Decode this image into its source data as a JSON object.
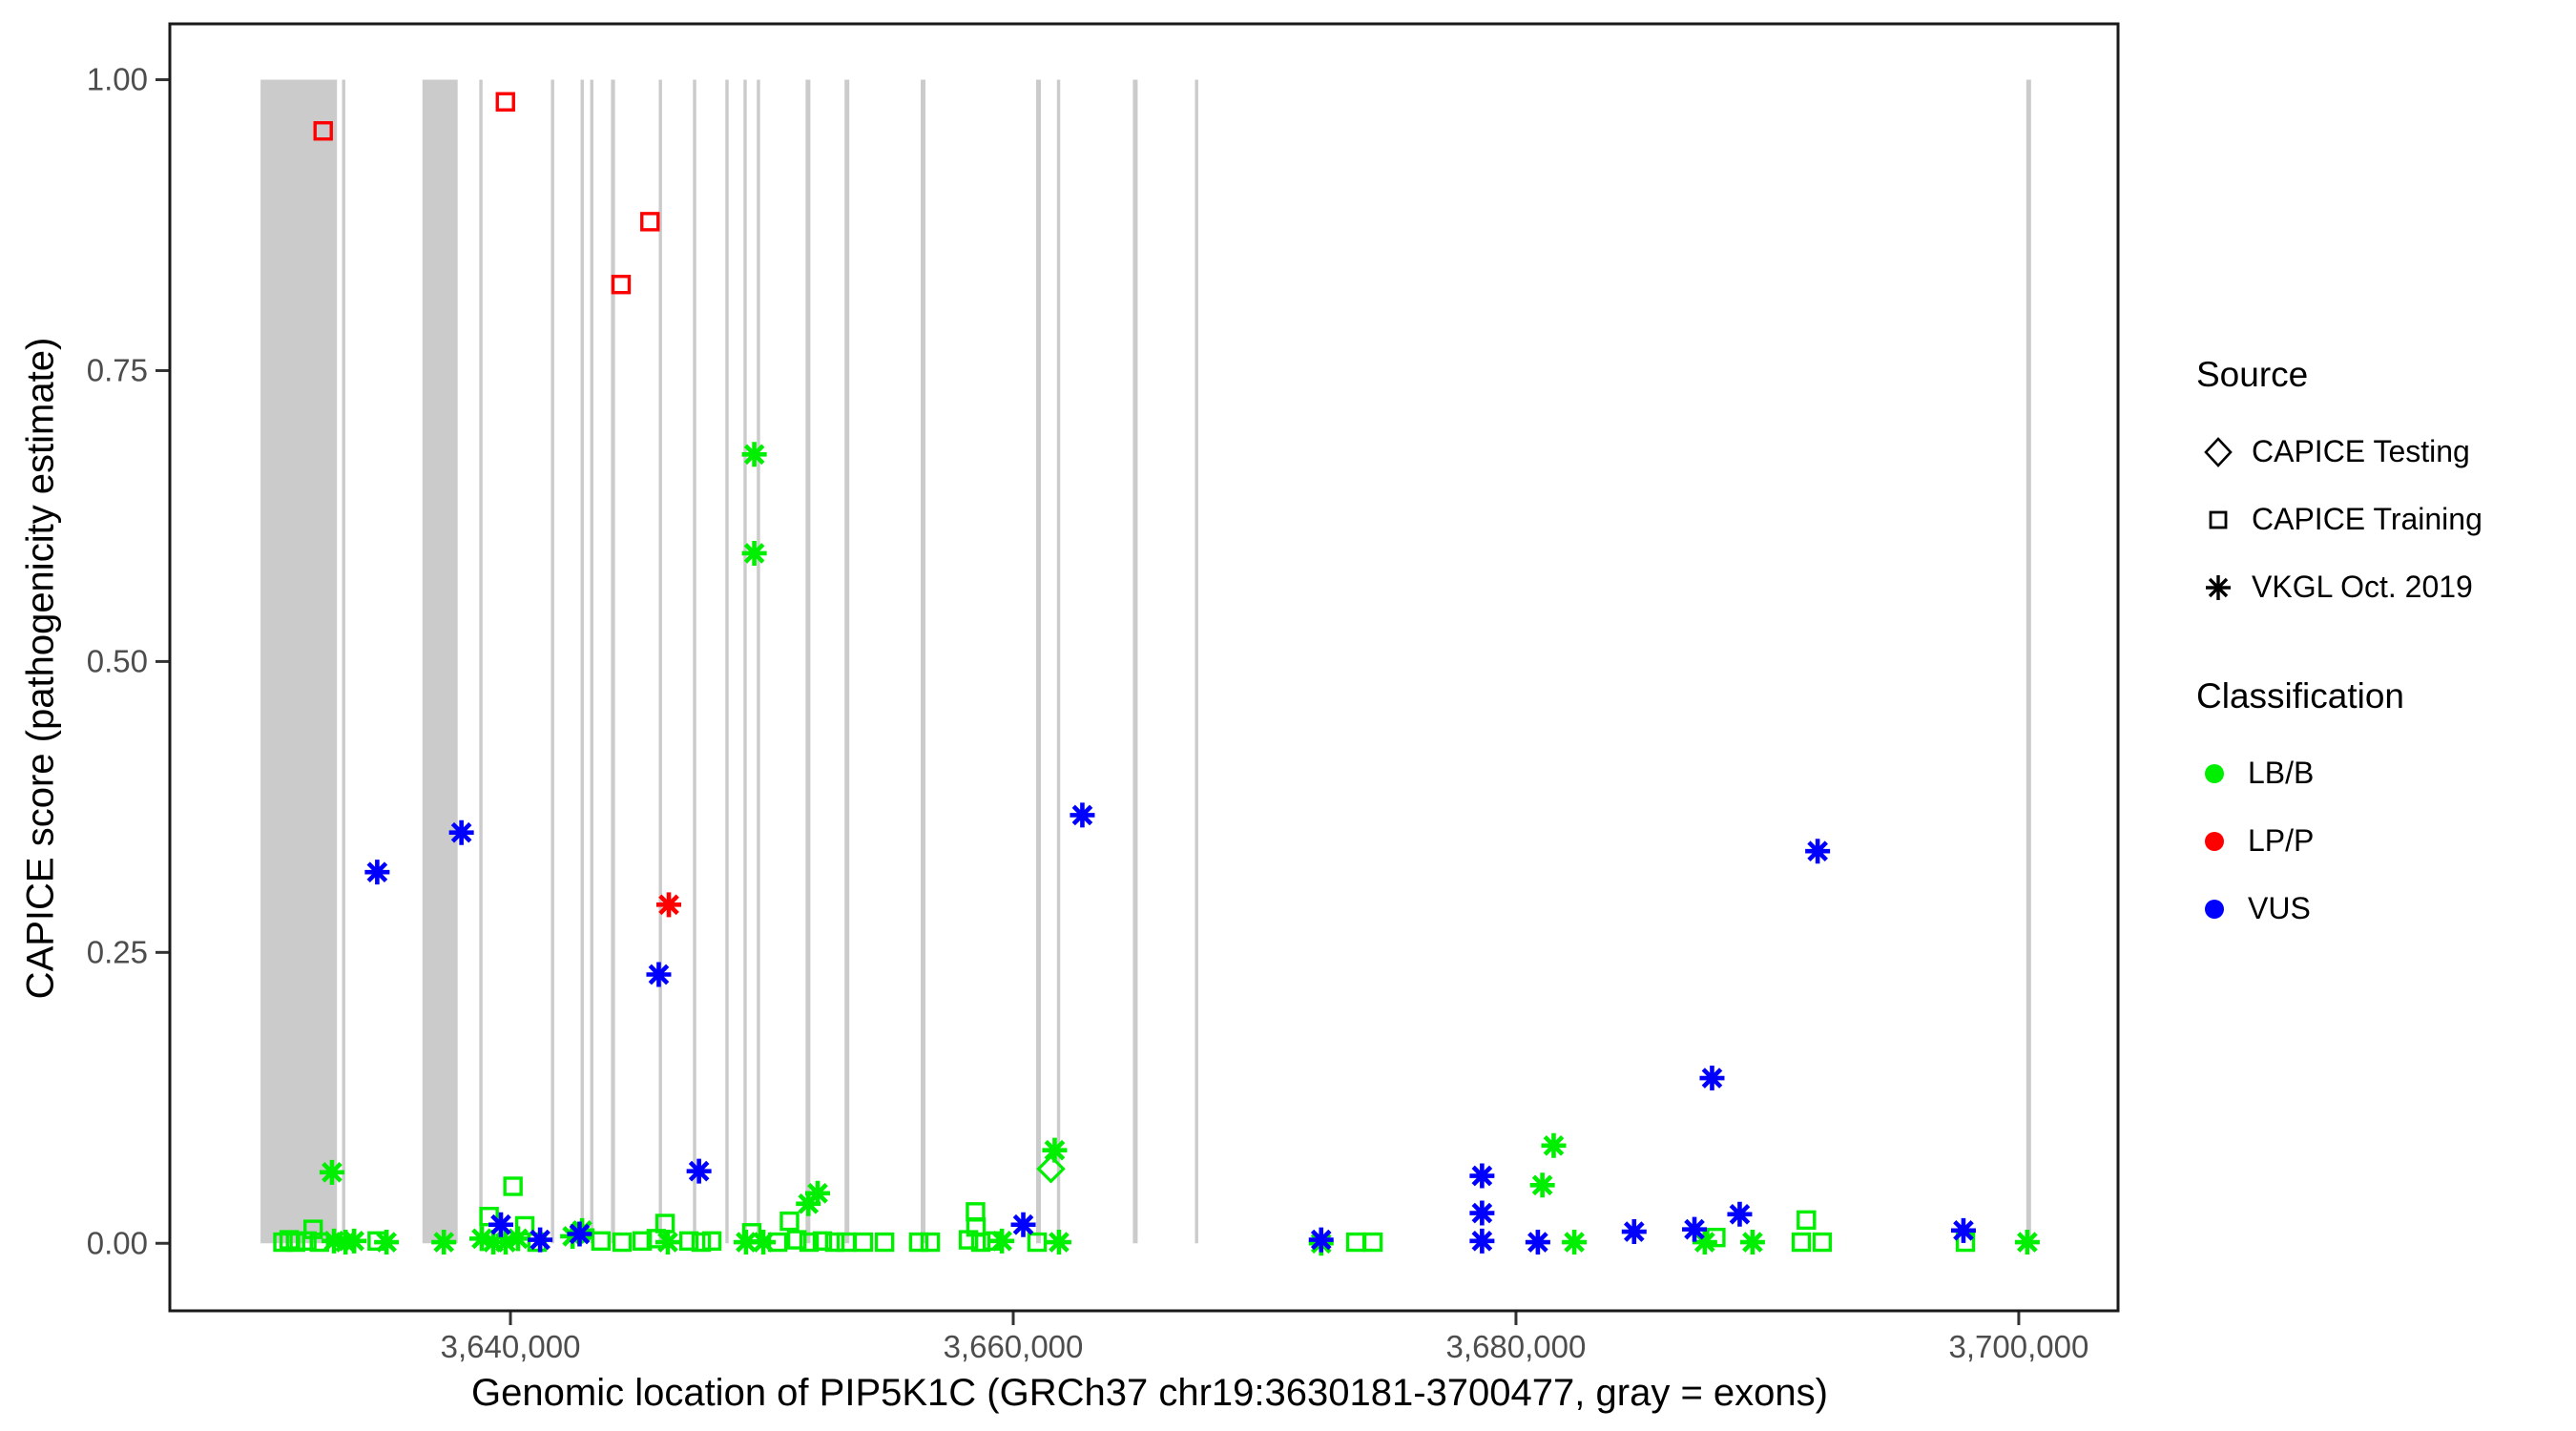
{
  "figure": {
    "x_axis_title": "Genomic location of PIP5K1C (GRCh37 chr19:3630181-3700477, gray = exons)",
    "y_axis_title": "CAPICE score (pathogenicity estimate)"
  },
  "legend": {
    "source": {
      "title": "Source",
      "items": [
        {
          "marker": "diamond",
          "label": "CAPICE Testing"
        },
        {
          "marker": "square",
          "label": "CAPICE Training"
        },
        {
          "marker": "asterisk",
          "label": "VKGL Oct. 2019"
        }
      ]
    },
    "classification": {
      "title": "Classification",
      "items": [
        {
          "color": "#00EE00",
          "label": "LB/B"
        },
        {
          "color": "#FF0000",
          "label": "LP/P"
        },
        {
          "color": "#0000FF",
          "label": "VUS"
        }
      ]
    }
  },
  "colors": {
    "background": "#FFFFFF",
    "exon_band": "#CBCBCB",
    "panel_border": "#1A1A1A",
    "tick_label": "#4D4D4D",
    "lbb_green": "#00EE00",
    "lpp_red": "#FF0000",
    "vus_blue": "#0000FF"
  },
  "chart_data": {
    "type": "scatter",
    "title": "",
    "xlabel": "Genomic location of PIP5K1C (GRCh37 chr19:3630181-3700477, gray = exons)",
    "ylabel": "CAPICE score (pathogenicity estimate)",
    "grid": false,
    "legend_position": "right",
    "x_range": [
      3626450,
      3703950
    ],
    "y_range": [
      -0.058,
      1.048
    ],
    "x_ticks": [
      {
        "v": 3640000,
        "label": "3,640,000"
      },
      {
        "v": 3660000,
        "label": "3,660,000"
      },
      {
        "v": 3680000,
        "label": "3,680,000"
      },
      {
        "v": 3700000,
        "label": "3,700,000"
      }
    ],
    "y_ticks": [
      {
        "v": 0.0,
        "label": "0.00"
      },
      {
        "v": 0.25,
        "label": "0.25"
      },
      {
        "v": 0.5,
        "label": "0.50"
      },
      {
        "v": 0.75,
        "label": "0.75"
      },
      {
        "v": 1.0,
        "label": "1.00"
      }
    ],
    "exons_note": "gray vertical bands span score 0 to 1 and mark exon intervals",
    "exons": [
      [
        3630060,
        3633100
      ],
      [
        3633300,
        3633430
      ],
      [
        3636500,
        3637900
      ],
      [
        3638760,
        3638890
      ],
      [
        3641610,
        3641740
      ],
      [
        3642790,
        3642920
      ],
      [
        3643170,
        3643300
      ],
      [
        3644000,
        3644160
      ],
      [
        3645900,
        3646030
      ],
      [
        3647260,
        3647390
      ],
      [
        3648550,
        3648680
      ],
      [
        3649270,
        3649400
      ],
      [
        3649800,
        3649930
      ],
      [
        3651740,
        3651930
      ],
      [
        3653290,
        3653480
      ],
      [
        3656320,
        3656510
      ],
      [
        3660910,
        3661100
      ],
      [
        3661740,
        3661870
      ],
      [
        3664760,
        3664950
      ],
      [
        3667230,
        3667360
      ],
      [
        3700300,
        3700490
      ]
    ],
    "marker_by_source": {
      "CAPICE Testing": "diamond",
      "CAPICE Training": "square",
      "VKGL Oct. 2019": "asterisk"
    },
    "color_by_classification": {
      "LB/B": "#00EE00",
      "LP/P": "#FF0000",
      "VUS": "#0000FF"
    },
    "points_columns": [
      "position",
      "score",
      "source",
      "classification"
    ],
    "points": [
      [
        3630950,
        0.001,
        "CAPICE Training",
        "LB/B"
      ],
      [
        3631200,
        0.003,
        "CAPICE Training",
        "LB/B"
      ],
      [
        3631450,
        0.001,
        "CAPICE Training",
        "LB/B"
      ],
      [
        3631900,
        0.002,
        "CAPICE Training",
        "LB/B"
      ],
      [
        3632150,
        0.012,
        "CAPICE Training",
        "LB/B"
      ],
      [
        3632400,
        0.001,
        "CAPICE Training",
        "LB/B"
      ],
      [
        3632980,
        0.002,
        "VKGL Oct. 2019",
        "LB/B"
      ],
      [
        3633440,
        0.001,
        "VKGL Oct. 2019",
        "LB/B"
      ],
      [
        3633780,
        0.002,
        "VKGL Oct. 2019",
        "LB/B"
      ],
      [
        3634700,
        0.002,
        "CAPICE Training",
        "LB/B"
      ],
      [
        3635070,
        0.001,
        "VKGL Oct. 2019",
        "LB/B"
      ],
      [
        3637350,
        0.001,
        "VKGL Oct. 2019",
        "LB/B"
      ],
      [
        3638860,
        0.004,
        "VKGL Oct. 2019",
        "LB/B"
      ],
      [
        3639150,
        0.023,
        "CAPICE Training",
        "LB/B"
      ],
      [
        3639320,
        0.001,
        "VKGL Oct. 2019",
        "LB/B"
      ],
      [
        3639810,
        0.001,
        "VKGL Oct. 2019",
        "LB/B"
      ],
      [
        3640100,
        0.049,
        "CAPICE Training",
        "LB/B"
      ],
      [
        3640300,
        0.004,
        "VKGL Oct. 2019",
        "LB/B"
      ],
      [
        3640570,
        0.015,
        "CAPICE Training",
        "LB/B"
      ],
      [
        3641060,
        0.001,
        "CAPICE Training",
        "LB/B"
      ],
      [
        3642470,
        0.006,
        "VKGL Oct. 2019",
        "LB/B"
      ],
      [
        3642850,
        0.011,
        "VKGL Oct. 2019",
        "LB/B"
      ],
      [
        3643600,
        0.002,
        "CAPICE Training",
        "LB/B"
      ],
      [
        3644440,
        0.001,
        "CAPICE Training",
        "LB/B"
      ],
      [
        3645240,
        0.002,
        "CAPICE Training",
        "LB/B"
      ],
      [
        3645800,
        0.004,
        "CAPICE Training",
        "LB/B"
      ],
      [
        3646150,
        0.017,
        "CAPICE Training",
        "LB/B"
      ],
      [
        3646260,
        0.001,
        "VKGL Oct. 2019",
        "LB/B"
      ],
      [
        3647100,
        0.002,
        "CAPICE Training",
        "LB/B"
      ],
      [
        3647590,
        0.001,
        "CAPICE Training",
        "LB/B"
      ],
      [
        3648010,
        0.002,
        "CAPICE Training",
        "LB/B"
      ],
      [
        3649370,
        0.001,
        "VKGL Oct. 2019",
        "LB/B"
      ],
      [
        3649600,
        0.009,
        "CAPICE Training",
        "LB/B"
      ],
      [
        3650060,
        0.001,
        "VKGL Oct. 2019",
        "LB/B"
      ],
      [
        3650630,
        0.001,
        "CAPICE Training",
        "LB/B"
      ],
      [
        3651100,
        0.019,
        "CAPICE Training",
        "LB/B"
      ],
      [
        3651390,
        0.003,
        "CAPICE Training",
        "LB/B"
      ],
      [
        3651850,
        0.034,
        "VKGL Oct. 2019",
        "LB/B"
      ],
      [
        3651880,
        0.001,
        "CAPICE Training",
        "LB/B"
      ],
      [
        3652220,
        0.043,
        "VKGL Oct. 2019",
        "LB/B"
      ],
      [
        3652410,
        0.002,
        "CAPICE Training",
        "LB/B"
      ],
      [
        3652900,
        0.001,
        "CAPICE Training",
        "LB/B"
      ],
      [
        3653360,
        0.001,
        "CAPICE Training",
        "LB/B"
      ],
      [
        3654040,
        0.001,
        "CAPICE Training",
        "LB/B"
      ],
      [
        3654880,
        0.001,
        "CAPICE Training",
        "LB/B"
      ],
      [
        3656240,
        0.001,
        "CAPICE Training",
        "LB/B"
      ],
      [
        3656700,
        0.001,
        "CAPICE Training",
        "LB/B"
      ],
      [
        3658220,
        0.003,
        "CAPICE Training",
        "LB/B"
      ],
      [
        3658500,
        0.027,
        "CAPICE Training",
        "LB/B"
      ],
      [
        3658520,
        0.014,
        "CAPICE Training",
        "LB/B"
      ],
      [
        3658710,
        0.001,
        "CAPICE Training",
        "LB/B"
      ],
      [
        3659170,
        0.002,
        "CAPICE Training",
        "LB/B"
      ],
      [
        3659550,
        0.002,
        "VKGL Oct. 2019",
        "LB/B"
      ],
      [
        3660950,
        0.001,
        "CAPICE Training",
        "LB/B"
      ],
      [
        3661500,
        0.064,
        "CAPICE Testing",
        "LB/B"
      ],
      [
        3661650,
        0.08,
        "VKGL Oct. 2019",
        "LB/B"
      ],
      [
        3661820,
        0.001,
        "VKGL Oct. 2019",
        "LB/B"
      ],
      [
        3672250,
        0.0,
        "VKGL Oct. 2019",
        "LB/B"
      ],
      [
        3673630,
        0.001,
        "CAPICE Training",
        "LB/B"
      ],
      [
        3674310,
        0.001,
        "CAPICE Training",
        "LB/B"
      ],
      [
        3681050,
        0.05,
        "VKGL Oct. 2019",
        "LB/B"
      ],
      [
        3681500,
        0.084,
        "VKGL Oct. 2019",
        "LB/B"
      ],
      [
        3682320,
        0.001,
        "VKGL Oct. 2019",
        "LB/B"
      ],
      [
        3687510,
        0.001,
        "VKGL Oct. 2019",
        "LB/B"
      ],
      [
        3687950,
        0.005,
        "CAPICE Training",
        "LB/B"
      ],
      [
        3689410,
        0.001,
        "VKGL Oct. 2019",
        "LB/B"
      ],
      [
        3691350,
        0.001,
        "CAPICE Training",
        "LB/B"
      ],
      [
        3691550,
        0.02,
        "CAPICE Training",
        "LB/B"
      ],
      [
        3692180,
        0.001,
        "CAPICE Training",
        "LB/B"
      ],
      [
        3697880,
        0.001,
        "CAPICE Training",
        "LB/B"
      ],
      [
        3700340,
        0.001,
        "VKGL Oct. 2019",
        "LB/B"
      ],
      [
        3632900,
        0.061,
        "VKGL Oct. 2019",
        "LB/B"
      ],
      [
        3649700,
        0.678,
        "VKGL Oct. 2019",
        "LB/B"
      ],
      [
        3649700,
        0.593,
        "VKGL Oct. 2019",
        "LB/B"
      ],
      [
        3634700,
        0.319,
        "VKGL Oct. 2019",
        "VUS"
      ],
      [
        3638050,
        0.353,
        "VKGL Oct. 2019",
        "VUS"
      ],
      [
        3639620,
        0.016,
        "VKGL Oct. 2019",
        "VUS"
      ],
      [
        3641180,
        0.003,
        "VKGL Oct. 2019",
        "VUS"
      ],
      [
        3642750,
        0.008,
        "VKGL Oct. 2019",
        "VUS"
      ],
      [
        3645900,
        0.231,
        "VKGL Oct. 2019",
        "VUS"
      ],
      [
        3647500,
        0.062,
        "VKGL Oct. 2019",
        "VUS"
      ],
      [
        3660400,
        0.016,
        "VKGL Oct. 2019",
        "VUS"
      ],
      [
        3662750,
        0.368,
        "VKGL Oct. 2019",
        "VUS"
      ],
      [
        3672250,
        0.003,
        "VKGL Oct. 2019",
        "VUS"
      ],
      [
        3678650,
        0.058,
        "VKGL Oct. 2019",
        "VUS"
      ],
      [
        3678650,
        0.026,
        "VKGL Oct. 2019",
        "VUS"
      ],
      [
        3678650,
        0.002,
        "VKGL Oct. 2019",
        "VUS"
      ],
      [
        3680870,
        0.001,
        "VKGL Oct. 2019",
        "VUS"
      ],
      [
        3684700,
        0.01,
        "VKGL Oct. 2019",
        "VUS"
      ],
      [
        3687100,
        0.012,
        "VKGL Oct. 2019",
        "VUS"
      ],
      [
        3687800,
        0.142,
        "VKGL Oct. 2019",
        "VUS"
      ],
      [
        3688900,
        0.025,
        "VKGL Oct. 2019",
        "VUS"
      ],
      [
        3692000,
        0.337,
        "VKGL Oct. 2019",
        "VUS"
      ],
      [
        3697800,
        0.011,
        "VKGL Oct. 2019",
        "VUS"
      ],
      [
        3632550,
        0.956,
        "CAPICE Training",
        "LP/P"
      ],
      [
        3639800,
        0.981,
        "CAPICE Training",
        "LP/P"
      ],
      [
        3644400,
        0.824,
        "CAPICE Training",
        "LP/P"
      ],
      [
        3645550,
        0.878,
        "CAPICE Training",
        "LP/P"
      ],
      [
        3646300,
        0.291,
        "VKGL Oct. 2019",
        "LP/P"
      ]
    ]
  }
}
